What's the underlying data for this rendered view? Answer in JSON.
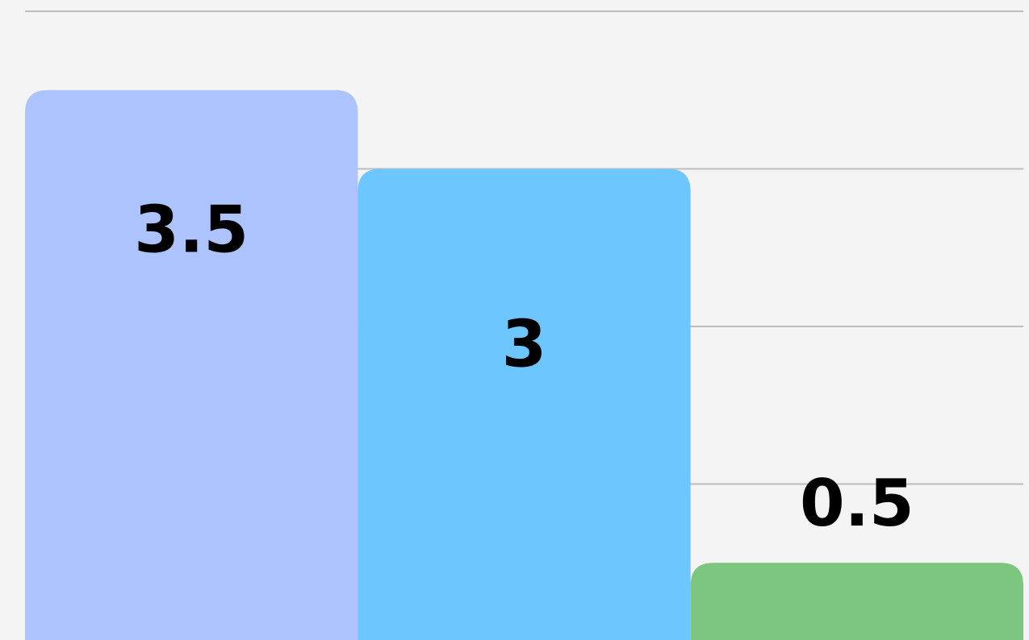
{
  "chart_data": {
    "type": "bar",
    "categories": [
      null,
      null,
      null
    ],
    "values": [
      3.5,
      3,
      0.5
    ],
    "colors": [
      "#adc3fe",
      "#6ec6fe",
      "#7dc67f"
    ],
    "ylim": [
      0,
      4
    ],
    "yticks": [
      1,
      2,
      3,
      4
    ],
    "grid": true
  }
}
